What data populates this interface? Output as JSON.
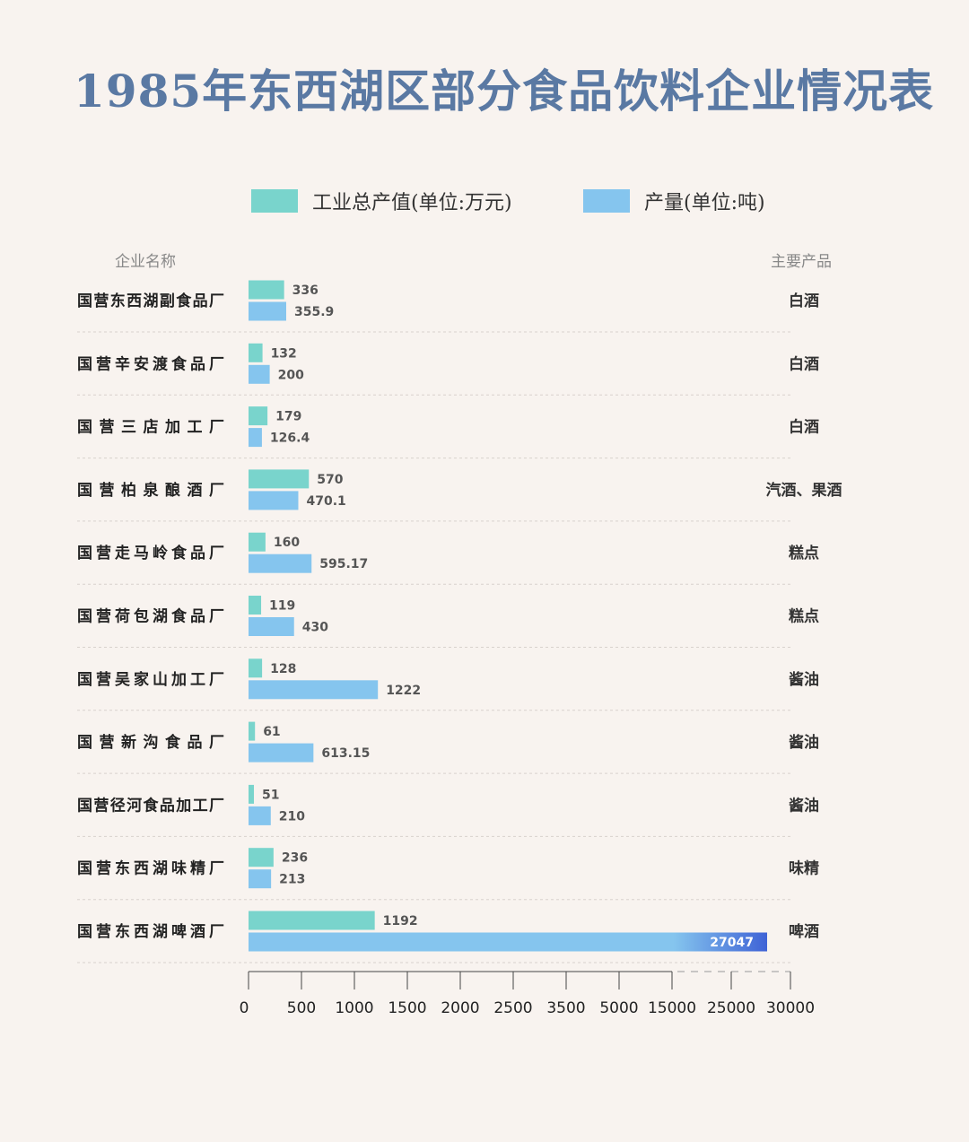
{
  "title": "1985年东西湖区部分食品饮料企业情况表",
  "legend": [
    {
      "label": "工业总产值(单位:万元)",
      "color": "#79d4cc"
    },
    {
      "label": "产量(单位:吨)",
      "color": "#85c5ee"
    }
  ],
  "headers": {
    "company": "企业名称",
    "product": "主要产品"
  },
  "chart_data": {
    "type": "bar",
    "orientation": "horizontal",
    "categories": [
      "国营东西湖副食品厂",
      "国营辛安渡食品厂",
      "国营三店加工厂",
      "国营柏泉酿酒厂",
      "国营走马岭食品厂",
      "国营荷包湖食品厂",
      "国营吴家山加工厂",
      "国营新沟食品厂",
      "国营径河食品加工厂",
      "国营东西湖味精厂",
      "国营东西湖啤酒厂"
    ],
    "products": [
      "白酒",
      "白酒",
      "白酒",
      "汽酒、果酒",
      "糕点",
      "糕点",
      "酱油",
      "酱油",
      "酱油",
      "味精",
      "啤酒"
    ],
    "series": [
      {
        "name": "工业总产值(单位:万元)",
        "color": "#79d4cc",
        "values": [
          336,
          132,
          179,
          570,
          160,
          119,
          128,
          61,
          51,
          236,
          1192
        ],
        "labels": [
          "336",
          "132",
          "179",
          "570",
          "160",
          "119",
          "128",
          "61",
          "51",
          "236",
          "1192"
        ]
      },
      {
        "name": "产量(单位:吨)",
        "color": "#85c5ee",
        "values": [
          355.9,
          200,
          126.4,
          470.1,
          595.17,
          430,
          1222,
          613.15,
          210,
          213,
          27047
        ],
        "labels": [
          "355.9",
          "200",
          "126.4",
          "470.1",
          "595.17",
          "430",
          "1222",
          "613.15",
          "210",
          "213",
          "27047"
        ]
      }
    ],
    "x_ticks": [
      "0",
      "500",
      "1000",
      "1500",
      "2000",
      "2500",
      "3500",
      "5000",
      "15000",
      "25000",
      "30000"
    ],
    "x_tick_values": [
      0,
      500,
      1000,
      1500,
      2000,
      2500,
      3500,
      5000,
      15000,
      25000,
      30000
    ],
    "axis_scale": "piecewise, broken beyond 15000",
    "grid": false,
    "legend_position": "top"
  }
}
